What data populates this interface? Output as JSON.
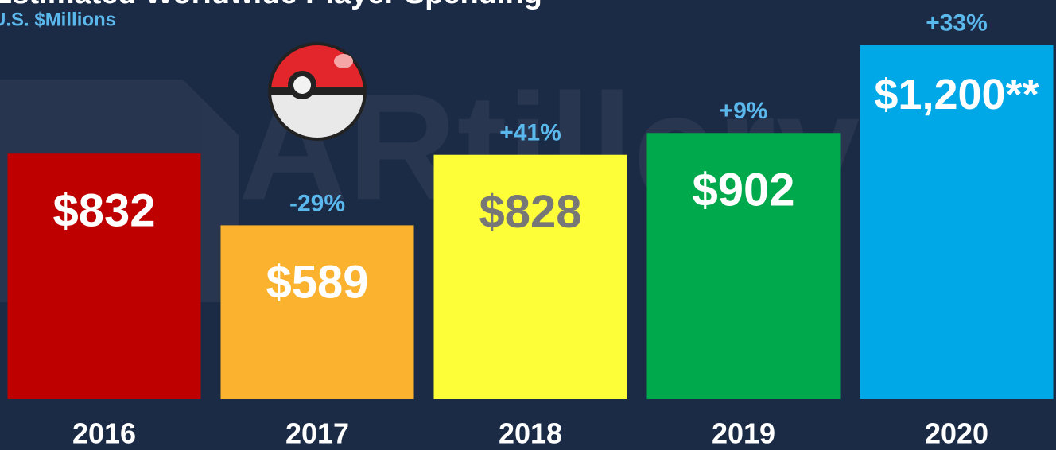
{
  "chart_data": {
    "type": "bar",
    "title": "Estimated Worldwide Player Spending",
    "subtitle": "U.S. $Millions",
    "categories": [
      "2016",
      "2017",
      "2018",
      "2019",
      "2020"
    ],
    "values": [
      832,
      589,
      828,
      902,
      1200
    ],
    "value_labels": [
      "$832",
      "$589",
      "$828",
      "$902",
      "$1,200**"
    ],
    "changes": [
      null,
      "-29%",
      "+41%",
      "+9%",
      "+33%"
    ],
    "colors": [
      "#bf0000",
      "#fbb22e",
      "#fefe38",
      "#00a94b",
      "#00a8e8"
    ],
    "label_colors": [
      "#ffffff",
      "#ffffff",
      "#777777",
      "#ffffff",
      "#ffffff"
    ],
    "ylim": [
      0,
      1350
    ]
  }
}
